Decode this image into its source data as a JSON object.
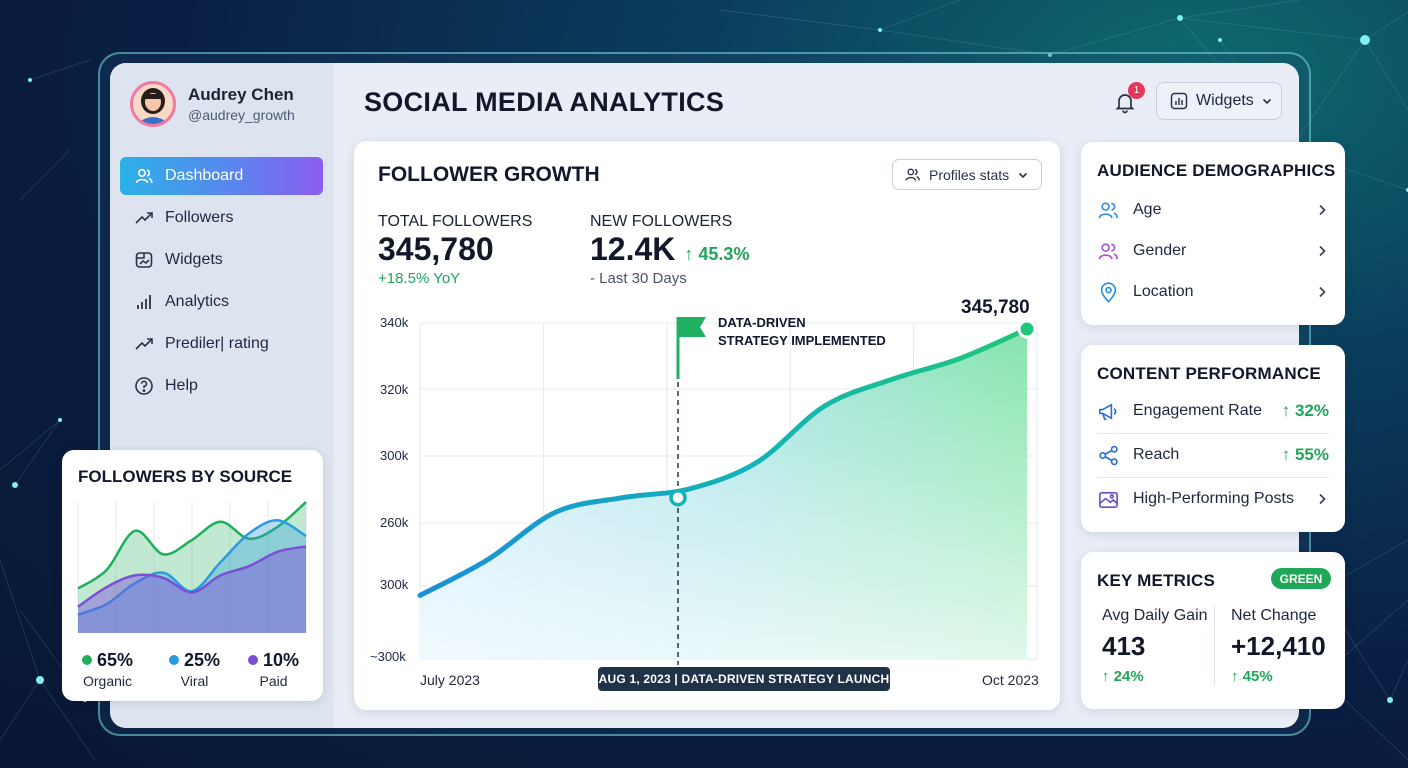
{
  "user": {
    "name": "Audrey Chen",
    "handle": "@audrey_growth"
  },
  "nav": [
    {
      "label": "Dashboard",
      "icon": "users-icon",
      "active": true
    },
    {
      "label": "Followers",
      "icon": "trend-icon"
    },
    {
      "label": "Widgets",
      "icon": "widgets-icon"
    },
    {
      "label": "Analytics",
      "icon": "bar-chart-icon"
    },
    {
      "label": "Prediler| rating",
      "icon": "trend-icon"
    },
    {
      "label": "Help",
      "icon": "help-icon"
    }
  ],
  "header": {
    "title": "SOCIAL MEDIA ANALYTICS",
    "notifications_count": "1",
    "widgets_label": "Widgets"
  },
  "follower_growth": {
    "title": "FOLLOWER GROWTH",
    "profiles_label": "Profiles stats",
    "total_label": "TOTAL FOLLOWERS",
    "total_value": "345,780",
    "total_change": "+18.5% YoY",
    "new_label": "NEW FOLLOWERS",
    "new_value": "12.4K",
    "new_change": "45.3%",
    "new_period": "- Last 30 Days",
    "annotation": [
      "DATA-DRIVEN",
      "STRATEGY IMPLEMENTED"
    ],
    "launch_label": "AUG 1, 2023 | DATA-DRIVEN STRATEGY LAUNCH",
    "end_label": "345,780"
  },
  "chart_data": [
    {
      "type": "area",
      "title": "FOLLOWER GROWTH",
      "y_ticks": [
        "340k",
        "320k",
        "300k",
        "260k",
        "300k",
        "~300k"
      ],
      "x_ticks": [
        "July 2023",
        "Oct 2023"
      ],
      "series": [
        {
          "level": [
            0.1,
            0.22,
            0.38,
            0.43,
            0.46,
            0.55,
            0.74,
            0.83,
            0.9,
            1.0
          ],
          "color": "#1aa3d9"
        }
      ],
      "markers": [
        {
          "level": 0.43,
          "label": "AUG 1, 2023 | DATA-DRIVEN STRATEGY LAUNCH"
        },
        {
          "level": 1.0,
          "label": "345,780"
        }
      ],
      "grid": true
    },
    {
      "type": "area",
      "title": "FOLLOWERS BY SOURCE",
      "series": [
        {
          "name": "Organic",
          "share": 65,
          "color": "#1fae5b",
          "level": [
            0.34,
            0.48,
            0.78,
            0.6,
            0.71,
            0.85,
            0.72,
            0.81,
            1.0
          ]
        },
        {
          "name": "Viral",
          "share": 25,
          "color": "#2b9be0",
          "level": [
            0.14,
            0.22,
            0.38,
            0.46,
            0.32,
            0.54,
            0.76,
            0.86,
            0.74
          ]
        },
        {
          "name": "Paid",
          "share": 10,
          "color": "#7a4fd6",
          "level": [
            0.2,
            0.35,
            0.44,
            0.42,
            0.31,
            0.44,
            0.51,
            0.62,
            0.66
          ]
        }
      ],
      "grid": true
    }
  ],
  "demographics": {
    "title": "AUDIENCE DEMOGRAPHICS",
    "items": [
      {
        "label": "Age",
        "icon": "users-icon"
      },
      {
        "label": "Gender",
        "icon": "users-icon"
      },
      {
        "label": "Location",
        "icon": "location-pin-icon"
      }
    ]
  },
  "content": {
    "title": "CONTENT PERFORMANCE",
    "items": [
      {
        "label": "Engagement Rate",
        "value": "32%"
      },
      {
        "label": "Reach",
        "value": "55%"
      },
      {
        "label": "High-Performing Posts"
      }
    ]
  },
  "key_metrics": {
    "title": "KEY METRICS",
    "badge": "GREEN",
    "avg_label": "Avg Daily Gain",
    "avg_value": "413",
    "avg_change": "24%",
    "net_label": "Net Change",
    "net_value": "+12,410",
    "net_change": "45%"
  },
  "source": {
    "title": "FOLLOWERS BY SOURCE",
    "legend": [
      {
        "pct": "65%",
        "name": "Organic",
        "color": "#1fae5b"
      },
      {
        "pct": "25%",
        "name": "Viral",
        "color": "#2b9be0"
      },
      {
        "pct": "10%",
        "name": "Paid",
        "color": "#7a4fd6"
      }
    ]
  }
}
